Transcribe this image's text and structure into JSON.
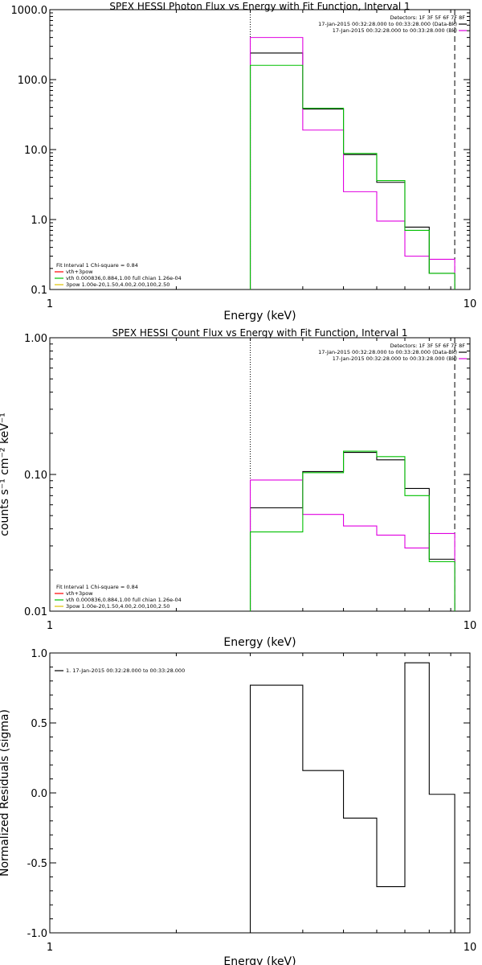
{
  "chart_data": [
    {
      "type": "line",
      "title": "SPEX HESSI Photon Flux vs Energy with Fit Function, Interval 1",
      "xlabel": "Energy (keV)",
      "ylabel": "",
      "x_scale": "log",
      "y_scale": "log",
      "xlim": [
        1,
        10
      ],
      "ylim": [
        0.1,
        1000
      ],
      "x_ticks": [
        {
          "v": 1,
          "label": "1"
        },
        {
          "v": 10,
          "label": "10"
        }
      ],
      "y_ticks": [
        {
          "v": 0.1,
          "label": "0.1"
        },
        {
          "v": 1,
          "label": "1.0"
        },
        {
          "v": 10,
          "label": "10.0"
        },
        {
          "v": 100,
          "label": "100.0"
        },
        {
          "v": 1000,
          "label": "1000.0"
        }
      ],
      "vlines": [
        {
          "x": 3.0,
          "style": "dotted"
        },
        {
          "x": 9.2,
          "style": "dashed"
        }
      ],
      "bin_edges": [
        3.0,
        4.0,
        5.0,
        6.0,
        7.0,
        8.0,
        9.2
      ],
      "series": [
        {
          "color": "#000000",
          "values": [
            240,
            38,
            8.5,
            3.4,
            0.78,
            0.17
          ]
        },
        {
          "color": "#e000e0",
          "values": [
            400,
            19,
            2.5,
            0.95,
            0.3,
            0.27
          ]
        },
        {
          "color": "#00c000",
          "values": [
            160,
            39,
            8.8,
            3.6,
            0.7,
            0.17
          ]
        }
      ],
      "legend_right": {
        "lines": [
          "Detectors: 1F 3F 5F 6F 7F 8F",
          "17-Jan-2015 00:32:28.000 to 00:33:28.000 (Data-Bk)",
          "17-Jan-2015 00:32:28.000 to 00:33:28.000 (Bk)"
        ],
        "colors": [
          "",
          "#000000",
          "#e000e0"
        ]
      },
      "legend_left": {
        "lines": [
          "Fit Interval  1    Chi-square = 0.84",
          "vth+3pow",
          "vth  0.000836,0.884,1.00   full chian 1.26e-04",
          "3pow  1.00e-20,1.50,4.00,2.00,100,2.50"
        ],
        "colors": [
          "",
          "#ff0000",
          "#00c000",
          "#e0c000"
        ]
      }
    },
    {
      "type": "line",
      "title": "SPEX HESSI Count Flux vs Energy with Fit Function, Interval 1",
      "xlabel": "Energy (keV)",
      "ylabel": "counts s⁻¹ cm⁻² keV⁻¹",
      "x_scale": "log",
      "y_scale": "log",
      "xlim": [
        1,
        10
      ],
      "ylim": [
        0.01,
        1
      ],
      "x_ticks": [
        {
          "v": 1,
          "label": "1"
        },
        {
          "v": 10,
          "label": "10"
        }
      ],
      "y_ticks": [
        {
          "v": 0.01,
          "label": "0.01"
        },
        {
          "v": 0.1,
          "label": "0.10"
        },
        {
          "v": 1,
          "label": "1.00"
        }
      ],
      "vlines": [
        {
          "x": 3.0,
          "style": "dotted"
        },
        {
          "x": 9.2,
          "style": "dashed"
        }
      ],
      "bin_edges": [
        3.0,
        4.0,
        5.0,
        6.0,
        7.0,
        8.0,
        9.2
      ],
      "series": [
        {
          "color": "#000000",
          "values": [
            0.057,
            0.105,
            0.145,
            0.128,
            0.079,
            0.024
          ]
        },
        {
          "color": "#e000e0",
          "values": [
            0.091,
            0.051,
            0.042,
            0.036,
            0.029,
            0.037
          ]
        },
        {
          "color": "#00c000",
          "values": [
            0.038,
            0.103,
            0.148,
            0.135,
            0.07,
            0.023
          ]
        }
      ],
      "legend_right": {
        "lines": [
          "Detectors: 1F 3F 5F 6F 7F 8F",
          "17-Jan-2015 00:32:28.000 to 00:33:28.000 (Data-Bk)",
          "17-Jan-2015 00:32:28.000 to 00:33:28.000 (Bk)"
        ],
        "colors": [
          "",
          "#000000",
          "#e000e0"
        ]
      },
      "legend_left": {
        "lines": [
          "Fit Interval  1    Chi-square = 0.84",
          "vth+3pow",
          "vth  0.000836,0.884,1.00   full chian 1.26e-04",
          "3pow  1.00e-20,1.50,4.00,2.00,100,2.50"
        ],
        "colors": [
          "",
          "#ff0000",
          "#00c000",
          "#e0c000"
        ]
      }
    },
    {
      "type": "line",
      "title": "",
      "xlabel": "Energy (keV)",
      "ylabel": "Normalized Residuals (sigma)",
      "x_scale": "log",
      "y_scale": "linear",
      "xlim": [
        1,
        10
      ],
      "ylim": [
        -1.0,
        1.0
      ],
      "x_ticks": [
        {
          "v": 1,
          "label": "1"
        },
        {
          "v": 10,
          "label": "10"
        }
      ],
      "y_ticks": [
        {
          "v": -1.0,
          "label": "-1.0"
        },
        {
          "v": -0.5,
          "label": "-0.5"
        },
        {
          "v": 0.0,
          "label": "0.0"
        },
        {
          "v": 0.5,
          "label": "0.5"
        },
        {
          "v": 1.0,
          "label": "1.0"
        }
      ],
      "vlines": [],
      "bin_edges": [
        3.0,
        4.0,
        5.0,
        6.0,
        7.0,
        8.0,
        9.2
      ],
      "step_from_bottom": true,
      "series": [
        {
          "color": "#000000",
          "values": [
            0.77,
            0.16,
            -0.18,
            -0.67,
            0.93,
            -0.01
          ]
        }
      ],
      "legend_right": {
        "lines": [],
        "colors": []
      },
      "legend_left": {
        "lines": [
          "1. 17-Jan-2015 00:32:28.000 to 00:33:28.000"
        ],
        "colors": [
          "#000000"
        ],
        "position": "top-left"
      }
    }
  ]
}
